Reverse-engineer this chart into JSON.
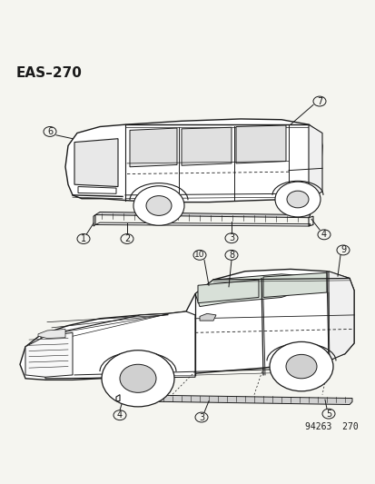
{
  "title": "EAS–270",
  "footnote": "94263  270",
  "bg_color": "#f5f5f0",
  "line_color": "#1a1a1a",
  "title_fontsize": 11,
  "footnote_fontsize": 7,
  "callout_fontsize": 7,
  "figsize": [
    4.14,
    5.33
  ],
  "dpi": 100
}
